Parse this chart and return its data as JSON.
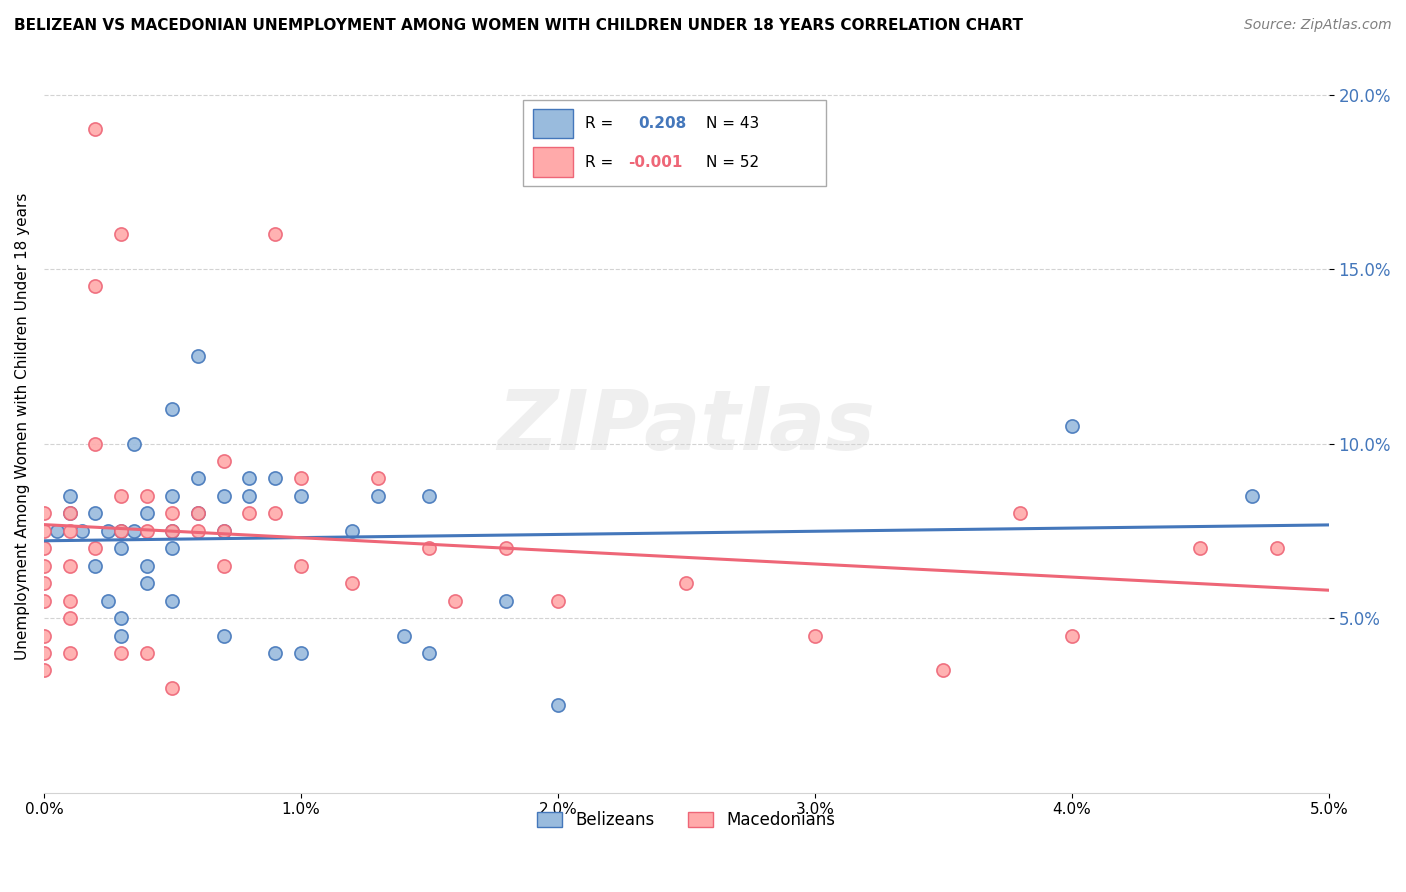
{
  "title": "BELIZEAN VS MACEDONIAN UNEMPLOYMENT AMONG WOMEN WITH CHILDREN UNDER 18 YEARS CORRELATION CHART",
  "source": "Source: ZipAtlas.com",
  "ylabel": "Unemployment Among Women with Children Under 18 years",
  "xlim": [
    0.0,
    0.05
  ],
  "ylim": [
    0.0,
    0.21
  ],
  "yticks": [
    0.05,
    0.1,
    0.15,
    0.2
  ],
  "ytick_labels": [
    "5.0%",
    "10.0%",
    "15.0%",
    "20.0%"
  ],
  "xticks": [
    0.0,
    0.01,
    0.02,
    0.03,
    0.04,
    0.05
  ],
  "xtick_labels": [
    "0.0%",
    "1.0%",
    "2.0%",
    "3.0%",
    "4.0%",
    "5.0%"
  ],
  "legend_line1": "R =  0.208   N = 43",
  "legend_line2": "R = -0.001   N = 52",
  "color_belizean_face": "#99BBDD",
  "color_belizean_edge": "#4477BB",
  "color_macedonian_face": "#FFAAAA",
  "color_macedonian_edge": "#EE6677",
  "color_line_belizean": "#4477BB",
  "color_line_macedonian": "#EE6677",
  "watermark": "ZIPatlas",
  "belizean_x": [
    0.0005,
    0.001,
    0.001,
    0.0015,
    0.002,
    0.002,
    0.0025,
    0.0025,
    0.003,
    0.003,
    0.003,
    0.003,
    0.0035,
    0.0035,
    0.004,
    0.004,
    0.004,
    0.005,
    0.005,
    0.005,
    0.005,
    0.005,
    0.006,
    0.006,
    0.006,
    0.007,
    0.007,
    0.007,
    0.008,
    0.008,
    0.009,
    0.009,
    0.01,
    0.01,
    0.012,
    0.013,
    0.014,
    0.015,
    0.015,
    0.018,
    0.02,
    0.04,
    0.047
  ],
  "belizean_y": [
    0.075,
    0.08,
    0.085,
    0.075,
    0.08,
    0.065,
    0.075,
    0.055,
    0.075,
    0.07,
    0.05,
    0.045,
    0.1,
    0.075,
    0.08,
    0.065,
    0.06,
    0.11,
    0.085,
    0.075,
    0.07,
    0.055,
    0.125,
    0.09,
    0.08,
    0.085,
    0.075,
    0.045,
    0.09,
    0.085,
    0.09,
    0.04,
    0.085,
    0.04,
    0.075,
    0.085,
    0.045,
    0.085,
    0.04,
    0.055,
    0.025,
    0.105,
    0.085
  ],
  "macedonian_x": [
    0.0,
    0.0,
    0.0,
    0.0,
    0.0,
    0.0,
    0.0,
    0.0,
    0.0,
    0.001,
    0.001,
    0.001,
    0.001,
    0.001,
    0.001,
    0.002,
    0.002,
    0.002,
    0.002,
    0.003,
    0.003,
    0.003,
    0.003,
    0.004,
    0.004,
    0.004,
    0.005,
    0.005,
    0.005,
    0.006,
    0.006,
    0.007,
    0.007,
    0.007,
    0.008,
    0.009,
    0.009,
    0.01,
    0.01,
    0.012,
    0.013,
    0.015,
    0.016,
    0.018,
    0.02,
    0.025,
    0.03,
    0.035,
    0.038,
    0.04,
    0.045,
    0.048
  ],
  "macedonian_y": [
    0.08,
    0.075,
    0.07,
    0.065,
    0.06,
    0.055,
    0.045,
    0.04,
    0.035,
    0.08,
    0.075,
    0.065,
    0.055,
    0.05,
    0.04,
    0.19,
    0.145,
    0.1,
    0.07,
    0.16,
    0.085,
    0.075,
    0.04,
    0.085,
    0.075,
    0.04,
    0.08,
    0.075,
    0.03,
    0.08,
    0.075,
    0.095,
    0.075,
    0.065,
    0.08,
    0.16,
    0.08,
    0.09,
    0.065,
    0.06,
    0.09,
    0.07,
    0.055,
    0.07,
    0.055,
    0.06,
    0.045,
    0.035,
    0.08,
    0.045,
    0.07,
    0.07
  ]
}
